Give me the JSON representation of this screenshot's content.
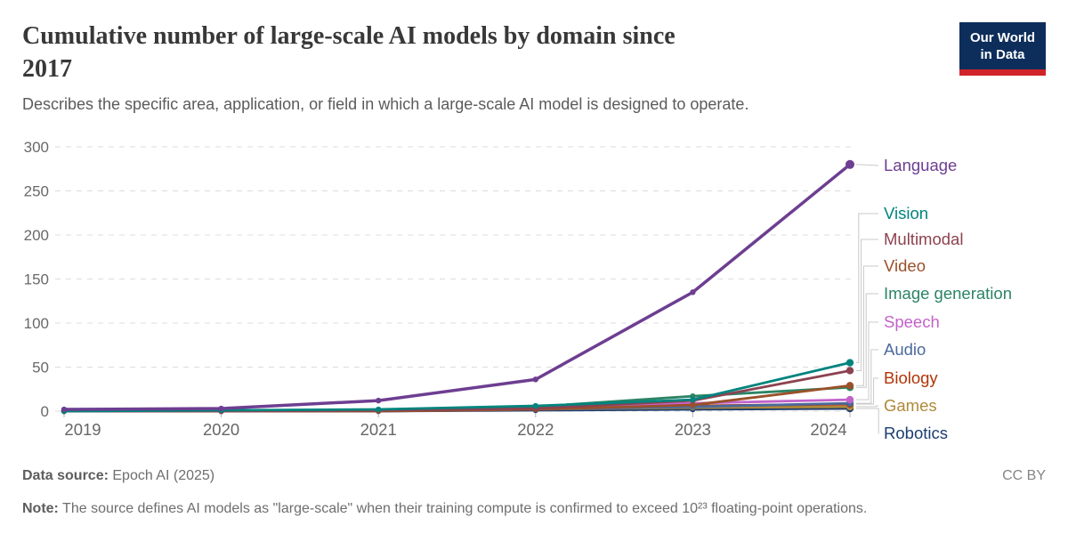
{
  "header": {
    "title_line1": "Cumulative number of large-scale AI models by domain since",
    "title_line2": "2017",
    "subtitle": "Describes the specific area, application, or field in which a large-scale AI model is designed to operate.",
    "logo_line1": "Our World",
    "logo_line2": "in Data",
    "logo_bg": "#0d2e5b",
    "logo_accent": "#d0232a"
  },
  "chart_data": {
    "type": "line",
    "title": "Cumulative number of large-scale AI models by domain since 2017",
    "xlabel": "",
    "ylabel": "",
    "x": [
      2019,
      2020,
      2021,
      2022,
      2023,
      2024
    ],
    "x_tick_labels": [
      "2019",
      "2020",
      "2021",
      "2022",
      "2023",
      "2024"
    ],
    "ylim": [
      0,
      300
    ],
    "yticks": [
      0,
      50,
      100,
      150,
      200,
      250,
      300
    ],
    "grid": true,
    "grid_style": "dashed",
    "legend_position": "right",
    "series": [
      {
        "name": "Language",
        "color": "#6D3E91",
        "values": [
          2,
          3,
          12,
          36,
          135,
          280
        ]
      },
      {
        "name": "Vision",
        "color": "#00847E",
        "values": [
          0,
          1,
          2,
          6,
          13,
          55
        ]
      },
      {
        "name": "Multimodal",
        "color": "#8C4250",
        "values": [
          0,
          0,
          1,
          3,
          12,
          46
        ]
      },
      {
        "name": "Video",
        "color": "#9A5129",
        "values": [
          0,
          0,
          0,
          2,
          7,
          29
        ]
      },
      {
        "name": "Image generation",
        "color": "#2C8465",
        "values": [
          0,
          0,
          1,
          5,
          17,
          27
        ]
      },
      {
        "name": "Speech",
        "color": "#C263C9",
        "values": [
          0,
          0,
          1,
          4,
          9,
          13
        ]
      },
      {
        "name": "Audio",
        "color": "#4C6A9C",
        "values": [
          0,
          0,
          0,
          2,
          5,
          9
        ]
      },
      {
        "name": "Biology",
        "color": "#B13507",
        "values": [
          0,
          0,
          1,
          3,
          6,
          8
        ]
      },
      {
        "name": "Games",
        "color": "#AE8939",
        "values": [
          0,
          0,
          1,
          2,
          4,
          5
        ]
      },
      {
        "name": "Robotics",
        "color": "#1D3D70",
        "values": [
          0,
          0,
          0,
          1,
          2,
          3
        ]
      }
    ]
  },
  "footer": {
    "data_source_label": "Data source:",
    "data_source_value": " Epoch AI (2025)",
    "license": "CC BY",
    "note_label": "Note:",
    "note_text": " The source defines AI models as \"large-scale\" when their training compute is confirmed to exceed 10²³ floating-point operations."
  }
}
